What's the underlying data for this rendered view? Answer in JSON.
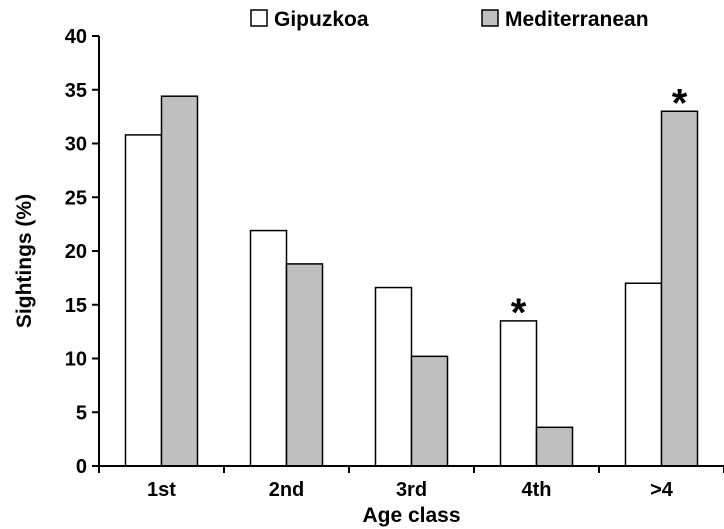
{
  "chart_data": {
    "type": "bar",
    "title": "",
    "xlabel": "Age class",
    "ylabel": "Sightings (%)",
    "categories": [
      "1st",
      "2nd",
      "3rd",
      "4th",
      ">4"
    ],
    "series": [
      {
        "name": "Gipuzkoa",
        "color": "#ffffff",
        "values": [
          30.8,
          21.9,
          16.6,
          13.5,
          17.0
        ]
      },
      {
        "name": "Mediterranean",
        "color": "#bfbfbf",
        "values": [
          34.4,
          18.8,
          10.2,
          3.6,
          33.0
        ]
      }
    ],
    "ylim": [
      0,
      40
    ],
    "yticks": [
      "0",
      "5",
      "10",
      "15",
      "20",
      "25",
      "30",
      "35",
      "40"
    ],
    "grid": false,
    "legend_position": "top",
    "annotations": [
      {
        "category": "4th",
        "text": "*"
      },
      {
        "category": ">4",
        "text": "*"
      }
    ]
  }
}
